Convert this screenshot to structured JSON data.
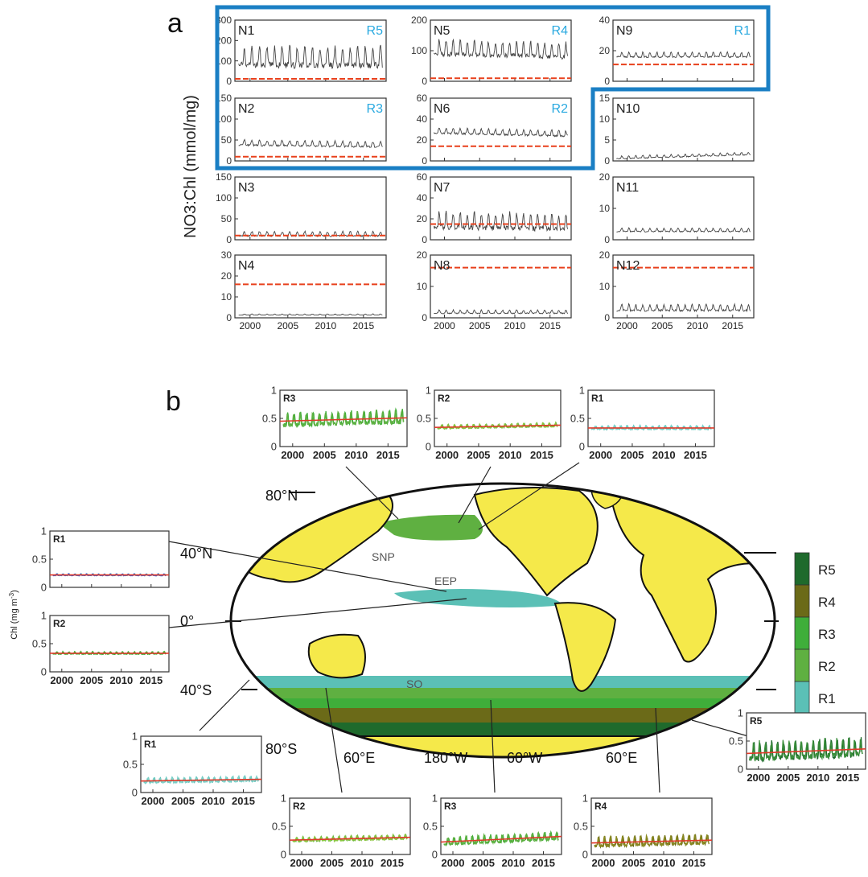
{
  "panel_letters": {
    "a": "a",
    "b": "b"
  },
  "panel_a": {
    "ylabel": "NO3:Chl (mmol/mg)",
    "x_tick_labels": [
      "2000",
      "2005",
      "2010",
      "2015"
    ]
  },
  "panel_b": {
    "ylabel": "Chl (mg m",
    "ylabel_sup": "-3",
    "ylabel_close": ")",
    "map_lat_labels": [
      "80°N",
      "40°N",
      "0°",
      "40°S",
      "80°S"
    ],
    "map_lon_labels": [
      "60°E",
      "180°W",
      "60°W",
      "60°E"
    ],
    "map_region_labels": [
      "SNP",
      "EEP",
      "SO"
    ],
    "legend": [
      "R5",
      "R4",
      "R3",
      "R2",
      "R1"
    ],
    "x_tick_labels": [
      "2000",
      "2005",
      "2010",
      "2015"
    ]
  },
  "colors": {
    "frame_blue": "#1a7fc4",
    "regime_label": "#29a9e0",
    "threshold": "#e8401c",
    "trend": "#e03a2a",
    "R1": "#5bc0b6",
    "R2": "#5fb041",
    "R3": "#3fae3a",
    "R4": "#6b6a18",
    "R5": "#1e6a2c",
    "land": "#f5e94a"
  },
  "chart_data": [
    {
      "type": "line",
      "panel": "a",
      "name": "N1",
      "regime": "R5",
      "ylim": [
        0,
        300
      ],
      "yticks": [
        0,
        100,
        200,
        300
      ],
      "xlim": [
        1998,
        2018
      ],
      "threshold": 12,
      "mean": 110,
      "amplitude": 90,
      "trend": 0
    },
    {
      "type": "line",
      "panel": "a",
      "name": "N2",
      "regime": "R3",
      "ylim": [
        0,
        150
      ],
      "yticks": [
        0,
        50,
        100,
        150
      ],
      "xlim": [
        1998,
        2018
      ],
      "threshold": 10,
      "mean": 40,
      "amplitude": 12,
      "trend": -5
    },
    {
      "type": "line",
      "panel": "a",
      "name": "N3",
      "regime": "",
      "ylim": [
        0,
        150
      ],
      "yticks": [
        0,
        50,
        100,
        150
      ],
      "xlim": [
        1998,
        2018
      ],
      "threshold": 10,
      "mean": 13,
      "amplitude": 10,
      "trend": 0
    },
    {
      "type": "line",
      "panel": "a",
      "name": "N4",
      "regime": "",
      "ylim": [
        0,
        30
      ],
      "yticks": [
        0,
        10,
        20,
        30
      ],
      "xlim": [
        1998,
        2018
      ],
      "threshold": 16,
      "mean": 1.5,
      "amplitude": 0.5,
      "trend": 0
    },
    {
      "type": "line",
      "panel": "a",
      "name": "N5",
      "regime": "R4",
      "ylim": [
        0,
        200
      ],
      "yticks": [
        0,
        100,
        200
      ],
      "xlim": [
        1998,
        2018
      ],
      "threshold": 10,
      "mean": 100,
      "amplitude": 45,
      "trend": -10
    },
    {
      "type": "line",
      "panel": "a",
      "name": "N6",
      "regime": "R2",
      "ylim": [
        0,
        60
      ],
      "yticks": [
        0,
        20,
        40,
        60
      ],
      "xlim": [
        1998,
        2018
      ],
      "threshold": 14,
      "mean": 27,
      "amplitude": 5,
      "trend": -3
    },
    {
      "type": "line",
      "panel": "a",
      "name": "N7",
      "regime": "",
      "ylim": [
        0,
        60
      ],
      "yticks": [
        0,
        20,
        40,
        60
      ],
      "xlim": [
        1998,
        2018
      ],
      "threshold": 15,
      "mean": 16,
      "amplitude": 14,
      "trend": -2
    },
    {
      "type": "line",
      "panel": "a",
      "name": "N8",
      "regime": "",
      "ylim": [
        0,
        20
      ],
      "yticks": [
        0,
        10,
        20
      ],
      "xlim": [
        1998,
        2018
      ],
      "threshold": 16,
      "mean": 1.8,
      "amplitude": 1,
      "trend": 0
    },
    {
      "type": "line",
      "panel": "a",
      "name": "N9",
      "regime": "R1",
      "ylim": [
        0,
        40
      ],
      "yticks": [
        0,
        20,
        40
      ],
      "xlim": [
        1998,
        2018
      ],
      "threshold": 11,
      "mean": 17,
      "amplitude": 3,
      "trend": 0
    },
    {
      "type": "line",
      "panel": "a",
      "name": "N10",
      "regime": "",
      "ylim": [
        0,
        15
      ],
      "yticks": [
        0,
        5,
        10,
        15
      ],
      "xlim": [
        1998,
        2018
      ],
      "threshold": null,
      "mean": 1.2,
      "amplitude": 0.6,
      "trend": 1
    },
    {
      "type": "line",
      "panel": "a",
      "name": "N11",
      "regime": "",
      "ylim": [
        0,
        20
      ],
      "yticks": [
        0,
        10,
        20
      ],
      "xlim": [
        1998,
        2018
      ],
      "threshold": null,
      "mean": 3,
      "amplitude": 1,
      "trend": 0
    },
    {
      "type": "line",
      "panel": "a",
      "name": "N12",
      "regime": "",
      "ylim": [
        0,
        20
      ],
      "yticks": [
        0,
        10,
        20
      ],
      "xlim": [
        1998,
        2018
      ],
      "threshold": 16,
      "mean": 3,
      "amplitude": 1.8,
      "trend": 0
    },
    {
      "type": "line",
      "panel": "b",
      "name": "R3",
      "location": "top-left",
      "ylim": [
        0,
        1
      ],
      "yticks": [
        0,
        0.5,
        1
      ],
      "xlim": [
        1998,
        2018
      ],
      "mean": 0.48,
      "amplitude": 0.2,
      "trend": 0.06,
      "series_colors": [
        "#3fae3a",
        "#5fb041"
      ]
    },
    {
      "type": "line",
      "panel": "b",
      "name": "R2",
      "location": "top-middle",
      "ylim": [
        0,
        1
      ],
      "yticks": [
        0,
        0.5,
        1
      ],
      "xlim": [
        1998,
        2018
      ],
      "mean": 0.36,
      "amplitude": 0.06,
      "trend": 0.04,
      "series_colors": [
        "#5fb041",
        "#8cc63f"
      ]
    },
    {
      "type": "line",
      "panel": "b",
      "name": "R1",
      "location": "top-right",
      "ylim": [
        0,
        1
      ],
      "yticks": [
        0,
        0.5,
        1
      ],
      "xlim": [
        1998,
        2018
      ],
      "mean": 0.33,
      "amplitude": 0.06,
      "trend": 0,
      "series_colors": [
        "#5bc0b6",
        "#7fd3cb"
      ]
    },
    {
      "type": "line",
      "panel": "b",
      "name": "R1",
      "location": "left-upper",
      "ylim": [
        0,
        1
      ],
      "yticks": [
        0,
        0.5,
        1
      ],
      "xlim": [
        1998,
        2018
      ],
      "mean": 0.22,
      "amplitude": 0.03,
      "trend": 0,
      "series_colors": [
        "#5bc0b6",
        "#3b5bd9"
      ]
    },
    {
      "type": "line",
      "panel": "b",
      "name": "R2",
      "location": "left-lower",
      "ylim": [
        0,
        1
      ],
      "yticks": [
        0,
        0.5,
        1
      ],
      "xlim": [
        1998,
        2018
      ],
      "mean": 0.33,
      "amplitude": 0.04,
      "trend": 0,
      "series_colors": [
        "#5fb041",
        "#3fae3a"
      ]
    },
    {
      "type": "line",
      "panel": "b",
      "name": "R1",
      "location": "bottom-left",
      "ylim": [
        0,
        1
      ],
      "yticks": [
        0,
        0.5,
        1
      ],
      "xlim": [
        1998,
        2018
      ],
      "mean": 0.22,
      "amplitude": 0.08,
      "trend": 0.03,
      "series_colors": [
        "#5bc0b6",
        "#7fd3cb"
      ]
    },
    {
      "type": "line",
      "panel": "b",
      "name": "R2",
      "location": "bottom-2",
      "ylim": [
        0,
        1
      ],
      "yticks": [
        0,
        0.5,
        1
      ],
      "xlim": [
        1998,
        2018
      ],
      "mean": 0.28,
      "amplitude": 0.07,
      "trend": 0.05,
      "series_colors": [
        "#5fb041",
        "#8cc63f"
      ]
    },
    {
      "type": "line",
      "panel": "b",
      "name": "R3",
      "location": "bottom-3",
      "ylim": [
        0,
        1
      ],
      "yticks": [
        0,
        0.5,
        1
      ],
      "xlim": [
        1998,
        2018
      ],
      "mean": 0.27,
      "amplitude": 0.12,
      "trend": 0.1,
      "series_colors": [
        "#3fae3a",
        "#5fb041"
      ]
    },
    {
      "type": "line",
      "panel": "b",
      "name": "R4",
      "location": "bottom-4",
      "ylim": [
        0,
        1
      ],
      "yticks": [
        0,
        0.5,
        1
      ],
      "xlim": [
        1998,
        2018
      ],
      "mean": 0.23,
      "amplitude": 0.15,
      "trend": 0.05,
      "series_colors": [
        "#6b6a18",
        "#8a8a20"
      ]
    },
    {
      "type": "line",
      "panel": "b",
      "name": "R5",
      "location": "bottom-right",
      "ylim": [
        0,
        1
      ],
      "yticks": [
        0,
        0.5,
        1
      ],
      "xlim": [
        1998,
        2018
      ],
      "mean": 0.32,
      "amplitude": 0.28,
      "trend": 0.08,
      "series_colors": [
        "#1e6a2c",
        "#3a8f3a"
      ]
    }
  ]
}
